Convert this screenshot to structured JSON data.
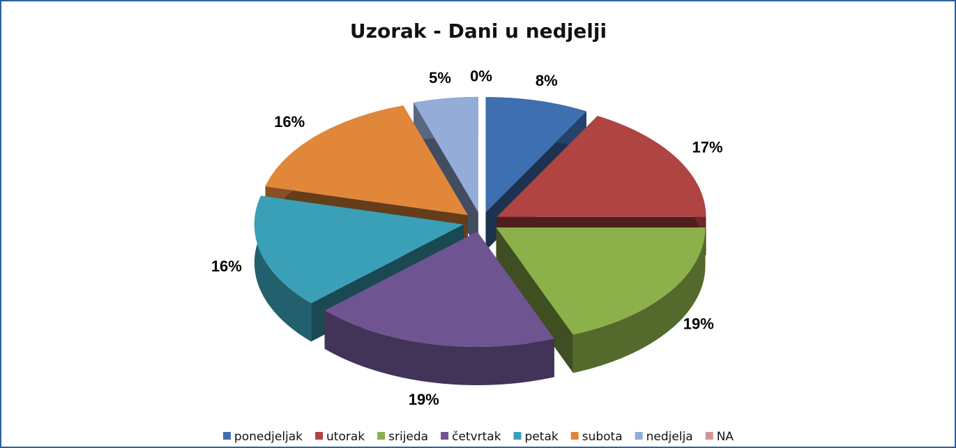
{
  "chart_data": {
    "type": "pie",
    "title": "Uzorak - Dani u nedjelji",
    "categories": [
      "ponedjeljak",
      "utorak",
      "srijeda",
      "četvrtak",
      "petak",
      "subota",
      "nedjelja",
      "NA"
    ],
    "values": [
      8,
      17,
      19,
      19,
      16,
      16,
      5,
      0
    ],
    "value_labels": [
      "8%",
      "17%",
      "19%",
      "19%",
      "16%",
      "16%",
      "5%",
      "0%"
    ],
    "colors": [
      "#3e6fb0",
      "#b04442",
      "#8cb04a",
      "#6e5592",
      "#3aa0b8",
      "#e0873a",
      "#93acd8",
      "#d49594"
    ],
    "legend": "bottom"
  }
}
